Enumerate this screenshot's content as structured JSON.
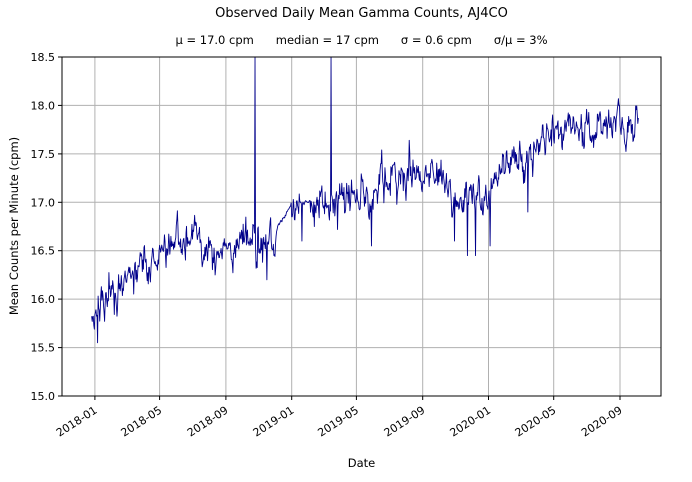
{
  "chart_data": {
    "type": "line",
    "title": "Observed Daily Mean Gamma Counts, AJ4CO",
    "subtitle": "μ = 17.0 cpm      median = 17 cpm      σ = 0.6 cpm      σ/μ = 3%",
    "stats": {
      "mu_cpm": 17.0,
      "median_cpm": 17,
      "sigma_cpm": 0.6,
      "sigma_over_mu": "3%"
    },
    "xlabel": "Date",
    "ylabel": "Mean Counts per Minute (cpm)",
    "ylim": [
      15.0,
      18.5
    ],
    "yticks": [
      15.0,
      15.5,
      16.0,
      16.5,
      17.0,
      17.5,
      18.0,
      18.5
    ],
    "xticks": [
      "2018-01",
      "2018-05",
      "2018-09",
      "2019-01",
      "2019-05",
      "2019-09",
      "2020-01",
      "2020-05",
      "2020-09"
    ],
    "x_axis_range": [
      "2017-11-01",
      "2020-11-16"
    ],
    "data_start": "2017-12-26",
    "data_end": "2020-10-05",
    "series_name": "observed daily mean gamma counts",
    "series_color": "#00008b",
    "grid": true,
    "grid_color": "#b0b0b0",
    "trend_keypoints": [
      [
        "2017-12-26",
        15.85
      ],
      [
        "2018-01-10",
        15.9
      ],
      [
        "2018-02-01",
        16.05
      ],
      [
        "2018-03-01",
        16.25
      ],
      [
        "2018-04-01",
        16.35
      ],
      [
        "2018-05-01",
        16.45
      ],
      [
        "2018-06-01",
        16.55
      ],
      [
        "2018-07-01",
        16.65
      ],
      [
        "2018-07-20",
        16.6
      ],
      [
        "2018-08-10",
        16.45
      ],
      [
        "2018-09-01",
        16.6
      ],
      [
        "2018-10-01",
        16.6
      ],
      [
        "2018-10-25",
        16.55
      ],
      [
        "2018-11-10",
        16.55
      ],
      [
        "2018-12-01",
        16.7
      ],
      [
        "2018-12-28",
        16.95
      ],
      [
        "2019-01-15",
        16.95
      ],
      [
        "2019-02-01",
        17.0
      ],
      [
        "2019-03-01",
        17.0
      ],
      [
        "2019-04-01",
        17.05
      ],
      [
        "2019-05-01",
        17.1
      ],
      [
        "2019-06-01",
        17.1
      ],
      [
        "2019-07-01",
        17.2
      ],
      [
        "2019-08-01",
        17.3
      ],
      [
        "2019-09-01",
        17.3
      ],
      [
        "2019-10-01",
        17.25
      ],
      [
        "2019-11-01",
        17.1
      ],
      [
        "2019-12-01",
        17.0
      ],
      [
        "2020-01-01",
        17.15
      ],
      [
        "2020-02-01",
        17.3
      ],
      [
        "2020-03-01",
        17.35
      ],
      [
        "2020-04-01",
        17.55
      ],
      [
        "2020-05-01",
        17.7
      ],
      [
        "2020-06-01",
        17.8
      ],
      [
        "2020-07-01",
        17.75
      ],
      [
        "2020-08-01",
        17.8
      ],
      [
        "2020-09-01",
        17.85
      ],
      [
        "2020-10-05",
        17.75
      ]
    ],
    "anomalies": [
      [
        "2018-01-06",
        15.55
      ],
      [
        "2018-08-12",
        16.25
      ],
      [
        "2018-10-25",
        19.5
      ],
      [
        "2018-11-16",
        16.2
      ],
      [
        "2019-01-20",
        16.6
      ],
      [
        "2019-02-12",
        16.75
      ],
      [
        "2019-03-15",
        19.5
      ],
      [
        "2019-05-29",
        16.55
      ],
      [
        "2019-10-30",
        16.6
      ],
      [
        "2019-11-23",
        16.45
      ],
      [
        "2019-12-08",
        16.45
      ],
      [
        "2020-01-04",
        16.55
      ],
      [
        "2020-03-14",
        16.9
      ]
    ],
    "noise_std": 0.085,
    "noise_ar": 0.55,
    "smooth_periods": [
      [
        "2018-12-03",
        "2018-12-30"
      ],
      [
        "2019-01-18",
        "2019-02-04"
      ]
    ]
  }
}
